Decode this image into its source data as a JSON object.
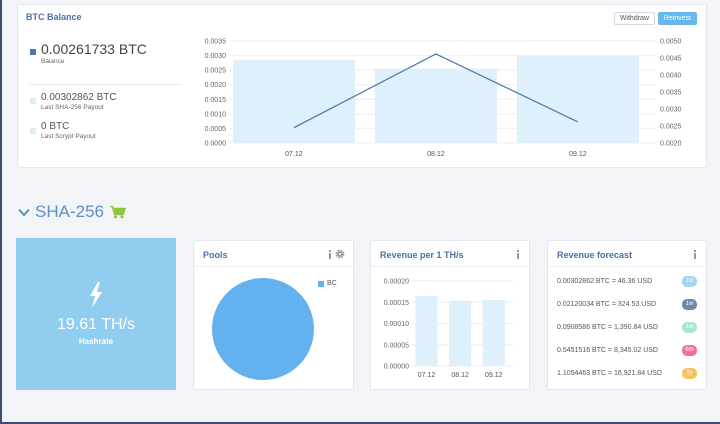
{
  "balance": {
    "title": "BTC Balance",
    "withdraw_label": "Withdraw",
    "reinvest_label": "Reinvest",
    "main_amount": "0.00261733 BTC",
    "main_label": "Balance",
    "sha_amount": "0.00302862 BTC",
    "sha_label": "Last SHA-256 Payout",
    "scrypt_amount": "0 BTC",
    "scrypt_label": "Last Scrypt Payout",
    "colors": {
      "balance": "#4f78ab",
      "payout": "#d7ecf8"
    }
  },
  "section": {
    "title": "SHA-256",
    "cart_icon": "cart-icon",
    "cart_color": "#8cc63f"
  },
  "hashrate": {
    "value": "19.61 TH/s",
    "label": "Hashrate",
    "icon": "lightning-icon",
    "background": "#91cdee"
  },
  "pools": {
    "title": "Pools",
    "legend": "BC",
    "color": "#64b1f0"
  },
  "revenue": {
    "title": "Revenue per 1 TH/s"
  },
  "forecast": {
    "title": "Revenue forecast",
    "rows": [
      {
        "text": "0.00302862 BTC = 46.36 USD",
        "badge": "1d",
        "color": "#9fd8ee"
      },
      {
        "text": "0.02120034 BTC = 324.53 USD",
        "badge": "1w",
        "color": "#6d87a8"
      },
      {
        "text": "0.0908586 BTC = 1,390.84 USD",
        "badge": "1m",
        "color": "#a8e6d3"
      },
      {
        "text": "0.5451516 BTC = 8,345.02 USD",
        "badge": "6m",
        "color": "#ee6fa4"
      },
      {
        "text": "1.1054463 BTC = 16,921.84 USD",
        "badge": "1y",
        "color": "#f4c35f"
      }
    ]
  },
  "chart_data": [
    {
      "type": "bar",
      "categories": [
        "07.12",
        "08.12",
        "09.12"
      ],
      "series": [
        {
          "values": [
            0.00285,
            0.00255,
            0.003
          ]
        },
        {
          "values": [
            0.00245,
            0.00462,
            0.00262
          ]
        }
      ],
      "left_ticks": [
        "0.0000",
        "0.0005",
        "0.0010",
        "0.0015",
        "0.0020",
        "0.0025",
        "0.0030",
        "0.0035"
      ],
      "right_ticks": [
        "0.0020",
        "0.0025",
        "0.0030",
        "0.0035",
        "0.0040",
        "0.0045",
        "0.0050"
      ],
      "ylim_left": [
        0,
        0.0035
      ],
      "ylim_right": [
        0.002,
        0.005
      ],
      "series_types": [
        "bar",
        "line"
      ],
      "grid": true
    },
    {
      "type": "bar",
      "categories": [
        "07.12",
        "08.12",
        "09.12"
      ],
      "values": [
        0.000165,
        0.000154,
        0.000155
      ],
      "ticks": [
        "0.00000",
        "0.00005",
        "0.00010",
        "0.00015",
        "0.00020"
      ],
      "ylim": [
        0,
        0.0002
      ],
      "grid": true
    },
    {
      "type": "pie",
      "categories": [
        "BC"
      ],
      "values": [
        100
      ]
    }
  ]
}
